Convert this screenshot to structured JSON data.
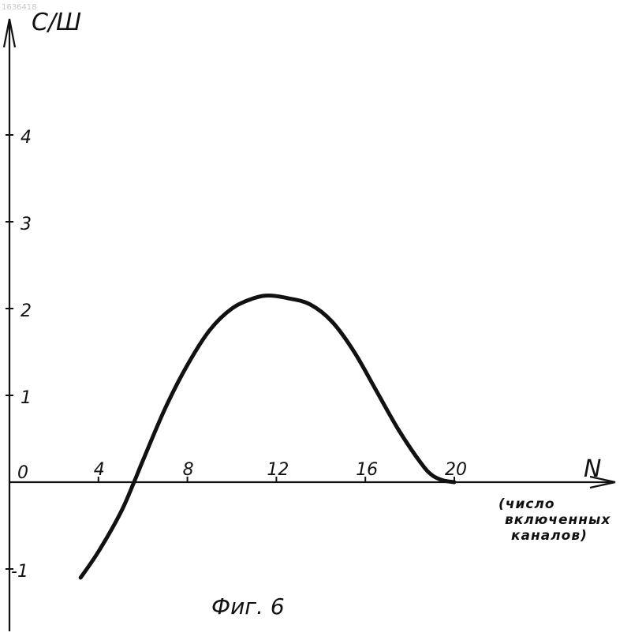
{
  "corner_mark": "1636418",
  "chart_data": {
    "type": "line",
    "ylabel": "С/Ш",
    "xlabel": "N",
    "xlabel_note": [
      "(число",
      "включенных",
      "каналов)"
    ],
    "caption": "Фиг. 6",
    "origin_label": "0",
    "x_ticks": [
      4,
      8,
      12,
      16,
      20
    ],
    "y_ticks": [
      -1,
      1,
      2,
      3,
      4
    ],
    "xlim": [
      0,
      21
    ],
    "ylim": [
      -1.5,
      5.4
    ],
    "grid": false,
    "series": [
      {
        "x": [
          3.2,
          4.0,
          5.0,
          5.6,
          6.0,
          7.0,
          8.0,
          9.0,
          10.0,
          11.0,
          11.7,
          12.5,
          13.5,
          14.5,
          15.5,
          16.5,
          17.5,
          18.5,
          19.0,
          19.5,
          20.0
        ],
        "y": [
          -1.1,
          -0.8,
          -0.35,
          0.0,
          0.25,
          0.85,
          1.35,
          1.75,
          2.0,
          2.12,
          2.15,
          2.12,
          2.05,
          1.85,
          1.5,
          1.05,
          0.6,
          0.22,
          0.08,
          0.02,
          0.0
        ]
      }
    ]
  }
}
